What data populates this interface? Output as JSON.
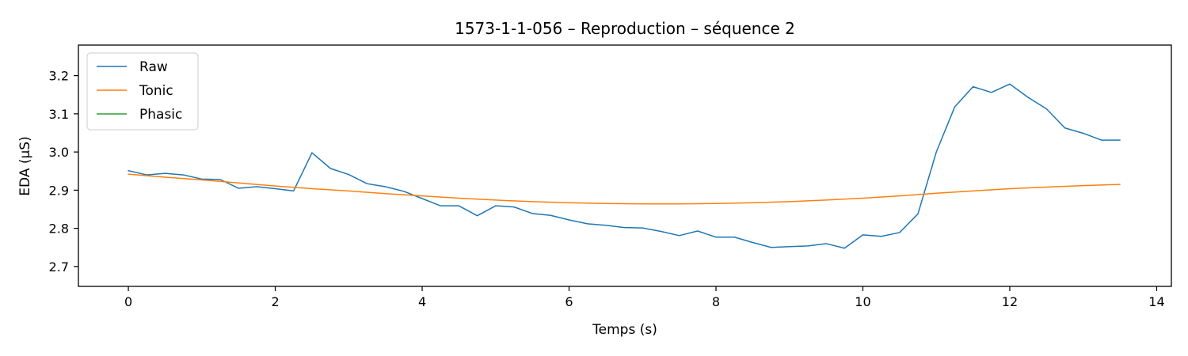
{
  "chart_data": {
    "type": "line",
    "title": "1573-1-1-056 – Reproduction – séquence 2",
    "xlabel": "Temps (s)",
    "ylabel": "EDA (µS)",
    "xlim": [
      -0.68,
      14.2
    ],
    "ylim": [
      2.648,
      3.28
    ],
    "xticks": [
      0,
      2,
      4,
      6,
      8,
      10,
      12,
      14
    ],
    "yticks": [
      2.7,
      2.8,
      2.9,
      3.0,
      3.1,
      3.2
    ],
    "xtick_labels": [
      "0",
      "2",
      "4",
      "6",
      "8",
      "10",
      "12",
      "14"
    ],
    "ytick_labels": [
      "2.7",
      "2.8",
      "2.9",
      "3.0",
      "3.1",
      "3.2"
    ],
    "grid": false,
    "legend": "top-left",
    "series": [
      {
        "name": "Raw",
        "color": "#1f77b4",
        "x": [
          0,
          0.25,
          0.5,
          0.75,
          1.0,
          1.25,
          1.5,
          1.75,
          2.0,
          2.25,
          2.5,
          2.75,
          3.0,
          3.25,
          3.5,
          3.75,
          4.0,
          4.25,
          4.5,
          4.75,
          5.0,
          5.25,
          5.5,
          5.75,
          6.0,
          6.25,
          6.5,
          6.75,
          7.0,
          7.25,
          7.5,
          7.75,
          8.0,
          8.25,
          8.5,
          8.75,
          9.0,
          9.25,
          9.5,
          9.75,
          10.0,
          10.25,
          10.5,
          10.75,
          11.0,
          11.25,
          11.5,
          11.75,
          12.0,
          12.25,
          12.5,
          12.75,
          13.0,
          13.25,
          13.5
        ],
        "y": [
          2.951,
          2.94,
          2.944,
          2.94,
          2.929,
          2.928,
          2.905,
          2.909,
          2.904,
          2.898,
          2.998,
          2.957,
          2.941,
          2.917,
          2.909,
          2.897,
          2.878,
          2.859,
          2.859,
          2.833,
          2.859,
          2.856,
          2.839,
          2.834,
          2.822,
          2.812,
          2.808,
          2.802,
          2.801,
          2.792,
          2.781,
          2.793,
          2.777,
          2.777,
          2.763,
          2.75,
          2.752,
          2.754,
          2.76,
          2.748,
          2.783,
          2.779,
          2.789,
          2.838,
          3.0,
          3.118,
          3.171,
          3.156,
          3.178,
          3.143,
          3.113,
          3.063,
          3.049,
          3.031,
          3.031
        ]
      },
      {
        "name": "Tonic",
        "color": "#ff7f0e",
        "x": [
          0,
          0.5,
          1.0,
          1.5,
          2.0,
          2.5,
          3.0,
          3.5,
          4.0,
          4.5,
          5.0,
          5.5,
          6.0,
          6.5,
          7.0,
          7.5,
          8.0,
          8.5,
          9.0,
          9.5,
          10.0,
          10.5,
          11.0,
          11.5,
          12.0,
          12.5,
          13.0,
          13.5
        ],
        "y": [
          2.942,
          2.934,
          2.927,
          2.919,
          2.911,
          2.904,
          2.898,
          2.891,
          2.885,
          2.879,
          2.874,
          2.87,
          2.867,
          2.865,
          2.864,
          2.864,
          2.865,
          2.867,
          2.87,
          2.874,
          2.879,
          2.885,
          2.892,
          2.898,
          2.904,
          2.908,
          2.912,
          2.915
        ]
      },
      {
        "name": "Phasic",
        "color": "#2ca02c",
        "x": [],
        "y": []
      }
    ]
  }
}
